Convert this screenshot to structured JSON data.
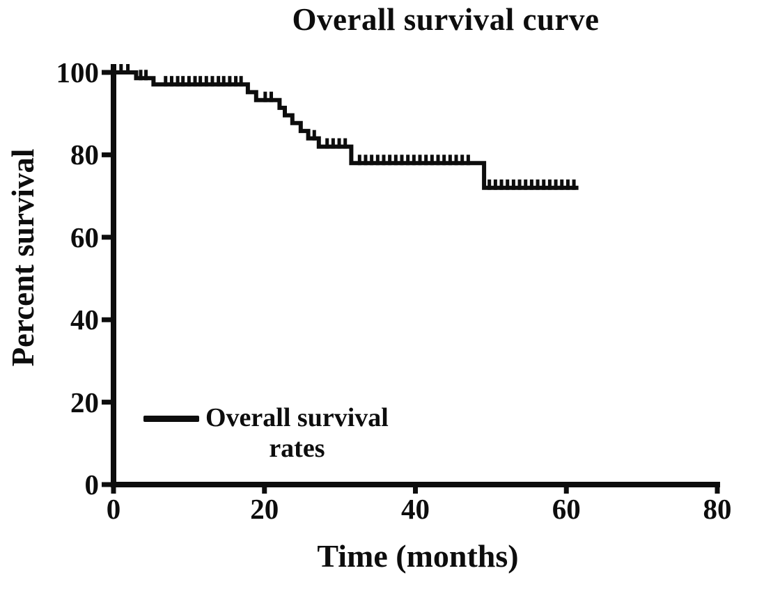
{
  "title": "Overall survival curve",
  "colors": {
    "line": "#0d0d0d",
    "text": "#0d0d0d",
    "background": "#ffffff"
  },
  "chart_data": {
    "type": "line",
    "subtype": "kaplan-meier-step-curve",
    "title": "Overall survival curve",
    "xlabel": "Time (months)",
    "ylabel": "Percent survival",
    "xlim": [
      0,
      80
    ],
    "ylim": [
      0,
      100
    ],
    "x_ticks": [
      "0",
      "20",
      "40",
      "60",
      "80"
    ],
    "x_tick_values": [
      0,
      20,
      40,
      60,
      80
    ],
    "y_ticks": [
      "0",
      "20",
      "40",
      "60",
      "80",
      "100"
    ],
    "y_tick_values": [
      0,
      20,
      40,
      60,
      80,
      100
    ],
    "grid": false,
    "legend_position": "inside-lower-left",
    "legend": {
      "line1": "Overall survival",
      "line2": "rates"
    },
    "series": [
      {
        "name": "Overall survival rates",
        "color": "#0d0d0d",
        "step_points": [
          [
            0,
            100
          ],
          [
            3.0,
            100
          ],
          [
            3.0,
            98.6
          ],
          [
            5.3,
            98.6
          ],
          [
            5.3,
            97.1
          ],
          [
            17.8,
            97.1
          ],
          [
            17.8,
            95.2
          ],
          [
            18.9,
            95.2
          ],
          [
            18.9,
            93.3
          ],
          [
            22.0,
            93.3
          ],
          [
            22.0,
            91.4
          ],
          [
            22.7,
            91.4
          ],
          [
            22.7,
            89.6
          ],
          [
            23.7,
            89.6
          ],
          [
            23.7,
            87.7
          ],
          [
            24.8,
            87.7
          ],
          [
            24.8,
            85.8
          ],
          [
            25.8,
            85.8
          ],
          [
            25.8,
            84.0
          ],
          [
            27.2,
            84.0
          ],
          [
            27.2,
            82.0
          ],
          [
            31.5,
            82.0
          ],
          [
            31.5,
            78.0
          ],
          [
            49.1,
            78.0
          ],
          [
            49.1,
            72.0
          ],
          [
            61.6,
            72.0
          ]
        ],
        "censor_marks": [
          [
            1.0,
            100
          ],
          [
            1.9,
            100
          ],
          [
            3.6,
            98.6
          ],
          [
            4.3,
            98.6
          ],
          [
            6.9,
            97.1
          ],
          [
            7.7,
            97.1
          ],
          [
            8.5,
            97.1
          ],
          [
            9.2,
            97.1
          ],
          [
            10.0,
            97.1
          ],
          [
            10.8,
            97.1
          ],
          [
            11.5,
            97.1
          ],
          [
            12.3,
            97.1
          ],
          [
            13.1,
            97.1
          ],
          [
            13.9,
            97.1
          ],
          [
            14.6,
            97.1
          ],
          [
            15.4,
            97.1
          ],
          [
            16.2,
            97.1
          ],
          [
            16.9,
            97.1
          ],
          [
            20.1,
            93.3
          ],
          [
            20.9,
            93.3
          ],
          [
            26.6,
            84.0
          ],
          [
            28.3,
            82.0
          ],
          [
            29.1,
            82.0
          ],
          [
            29.9,
            82.0
          ],
          [
            30.7,
            82.0
          ],
          [
            32.6,
            78.0
          ],
          [
            33.4,
            78.0
          ],
          [
            34.2,
            78.0
          ],
          [
            35.0,
            78.0
          ],
          [
            35.8,
            78.0
          ],
          [
            36.6,
            78.0
          ],
          [
            37.4,
            78.0
          ],
          [
            38.2,
            78.0
          ],
          [
            39.0,
            78.0
          ],
          [
            39.8,
            78.0
          ],
          [
            40.6,
            78.0
          ],
          [
            41.4,
            78.0
          ],
          [
            42.2,
            78.0
          ],
          [
            43.0,
            78.0
          ],
          [
            43.8,
            78.0
          ],
          [
            44.6,
            78.0
          ],
          [
            45.4,
            78.0
          ],
          [
            46.2,
            78.0
          ],
          [
            47.0,
            78.0
          ],
          [
            49.8,
            72.0
          ],
          [
            50.6,
            72.0
          ],
          [
            51.4,
            72.0
          ],
          [
            52.2,
            72.0
          ],
          [
            53.0,
            72.0
          ],
          [
            53.8,
            72.0
          ],
          [
            54.6,
            72.0
          ],
          [
            55.4,
            72.0
          ],
          [
            56.2,
            72.0
          ],
          [
            57.0,
            72.0
          ],
          [
            57.8,
            72.0
          ],
          [
            58.6,
            72.0
          ],
          [
            59.4,
            72.0
          ],
          [
            60.2,
            72.0
          ],
          [
            61.0,
            72.0
          ]
        ]
      }
    ]
  }
}
